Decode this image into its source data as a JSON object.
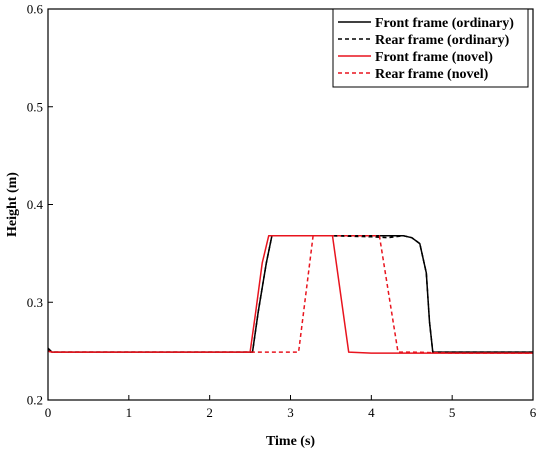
{
  "chart_data": {
    "type": "line",
    "title": "",
    "xlabel": "Time (s)",
    "ylabel": "Height (m)",
    "xlim": [
      0,
      6
    ],
    "ylim": [
      0.2,
      0.6
    ],
    "xticks": [
      0,
      1,
      2,
      3,
      4,
      5,
      6
    ],
    "yticks": [
      0.2,
      0.3,
      0.4,
      0.5,
      0.6
    ],
    "xtick_labels": [
      "0",
      "1",
      "2",
      "3",
      "4",
      "5",
      "6"
    ],
    "ytick_labels": [
      "0.2",
      "0.3",
      "0.4",
      "0.5",
      "0.6"
    ],
    "grid": false,
    "legend_position": "top-right",
    "series": [
      {
        "name": "Front frame (ordinary)",
        "color": "#000000",
        "dash": "solid",
        "x": [
          0,
          0.05,
          0.1,
          1.0,
          2.0,
          2.53,
          2.6,
          2.7,
          2.77,
          3.0,
          3.5,
          4.0,
          4.4,
          4.5,
          4.6,
          4.68,
          4.72,
          4.76,
          4.8,
          5.5,
          6.0
        ],
        "y": [
          0.253,
          0.249,
          0.249,
          0.249,
          0.249,
          0.249,
          0.29,
          0.34,
          0.368,
          0.368,
          0.368,
          0.368,
          0.368,
          0.366,
          0.36,
          0.33,
          0.28,
          0.249,
          0.249,
          0.249,
          0.249
        ]
      },
      {
        "name": "Rear frame (ordinary)",
        "color": "#000000",
        "dash": "dashed",
        "x": [
          0,
          0.05,
          0.1,
          1.0,
          2.0,
          2.53,
          2.6,
          2.7,
          2.77,
          3.0,
          3.5,
          4.0,
          4.2,
          4.4,
          4.5,
          4.6,
          4.68,
          4.72,
          4.76,
          4.8,
          5.5,
          6.0
        ],
        "y": [
          0.252,
          0.249,
          0.249,
          0.249,
          0.249,
          0.249,
          0.29,
          0.34,
          0.368,
          0.368,
          0.368,
          0.367,
          0.366,
          0.368,
          0.366,
          0.36,
          0.33,
          0.28,
          0.249,
          0.249,
          0.249,
          0.249
        ]
      },
      {
        "name": "Front frame (novel)",
        "color": "#e8141e",
        "dash": "solid",
        "x": [
          0,
          0.05,
          0.1,
          1.0,
          2.0,
          2.5,
          2.57,
          2.65,
          2.73,
          3.0,
          3.5,
          3.52,
          3.72,
          4.0,
          5.0,
          6.0
        ],
        "y": [
          0.25,
          0.249,
          0.249,
          0.249,
          0.249,
          0.249,
          0.29,
          0.34,
          0.368,
          0.368,
          0.368,
          0.368,
          0.249,
          0.248,
          0.248,
          0.248
        ]
      },
      {
        "name": "Rear frame (novel)",
        "color": "#e8141e",
        "dash": "dashed",
        "x": [
          0,
          0.05,
          0.1,
          1.0,
          2.0,
          2.5,
          2.6,
          2.8,
          3.1,
          3.28,
          3.5,
          4.0,
          4.1,
          4.33,
          4.5,
          5.0,
          6.0
        ],
        "y": [
          0.25,
          0.249,
          0.249,
          0.249,
          0.249,
          0.249,
          0.249,
          0.249,
          0.249,
          0.368,
          0.368,
          0.368,
          0.368,
          0.249,
          0.249,
          0.248,
          0.248
        ]
      }
    ]
  }
}
